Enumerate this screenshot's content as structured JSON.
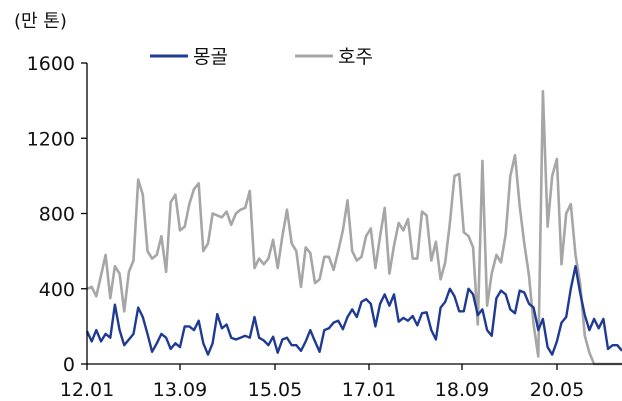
{
  "chart_data": {
    "type": "line",
    "unit_label": "(만 톤)",
    "x_tick_labels": [
      "12.01",
      "13.09",
      "15.05",
      "17.01",
      "18.09",
      "20.05"
    ],
    "y_ticks": [
      0,
      400,
      800,
      1200,
      1600
    ],
    "ylim": [
      0,
      1600
    ],
    "legend_position": "top",
    "grid": false,
    "series": [
      {
        "name": "몽골",
        "color": "#1f3a93",
        "values": [
          175,
          120,
          180,
          120,
          160,
          140,
          315,
          180,
          100,
          130,
          160,
          300,
          250,
          160,
          65,
          110,
          160,
          140,
          80,
          110,
          90,
          200,
          200,
          180,
          230,
          110,
          50,
          110,
          265,
          190,
          210,
          140,
          130,
          140,
          150,
          140,
          250,
          140,
          125,
          100,
          145,
          60,
          130,
          140,
          100,
          100,
          70,
          120,
          180,
          120,
          65,
          180,
          190,
          220,
          230,
          185,
          250,
          290,
          250,
          330,
          345,
          320,
          200,
          320,
          370,
          310,
          370,
          225,
          245,
          230,
          255,
          205,
          270,
          275,
          180,
          130,
          300,
          330,
          400,
          360,
          280,
          280,
          400,
          370,
          260,
          290,
          180,
          150,
          350,
          390,
          370,
          290,
          270,
          390,
          380,
          320,
          300,
          180,
          240,
          90,
          50,
          120,
          220,
          250,
          400,
          520,
          380,
          260,
          180,
          240,
          190,
          240,
          80,
          100,
          100,
          70
        ]
      },
      {
        "name": "호주",
        "color": "#a6a6a6",
        "values": [
          400,
          410,
          360,
          470,
          580,
          350,
          520,
          480,
          280,
          490,
          550,
          980,
          900,
          600,
          560,
          580,
          680,
          490,
          860,
          900,
          710,
          730,
          850,
          930,
          960,
          600,
          640,
          800,
          790,
          780,
          810,
          740,
          800,
          820,
          830,
          920,
          510,
          560,
          530,
          560,
          660,
          510,
          680,
          820,
          640,
          600,
          410,
          620,
          590,
          430,
          450,
          570,
          570,
          500,
          600,
          710,
          870,
          600,
          550,
          570,
          680,
          720,
          510,
          680,
          830,
          480,
          630,
          750,
          710,
          770,
          560,
          560,
          810,
          790,
          550,
          650,
          450,
          540,
          750,
          1000,
          1010,
          700,
          680,
          620,
          210,
          1080,
          310,
          480,
          580,
          540,
          690,
          1000,
          1110,
          840,
          640,
          470,
          210,
          40,
          1450,
          730,
          1000,
          1090,
          530,
          800,
          850,
          580,
          430,
          150,
          60,
          0,
          0,
          0,
          0,
          0,
          0,
          0
        ]
      }
    ]
  }
}
